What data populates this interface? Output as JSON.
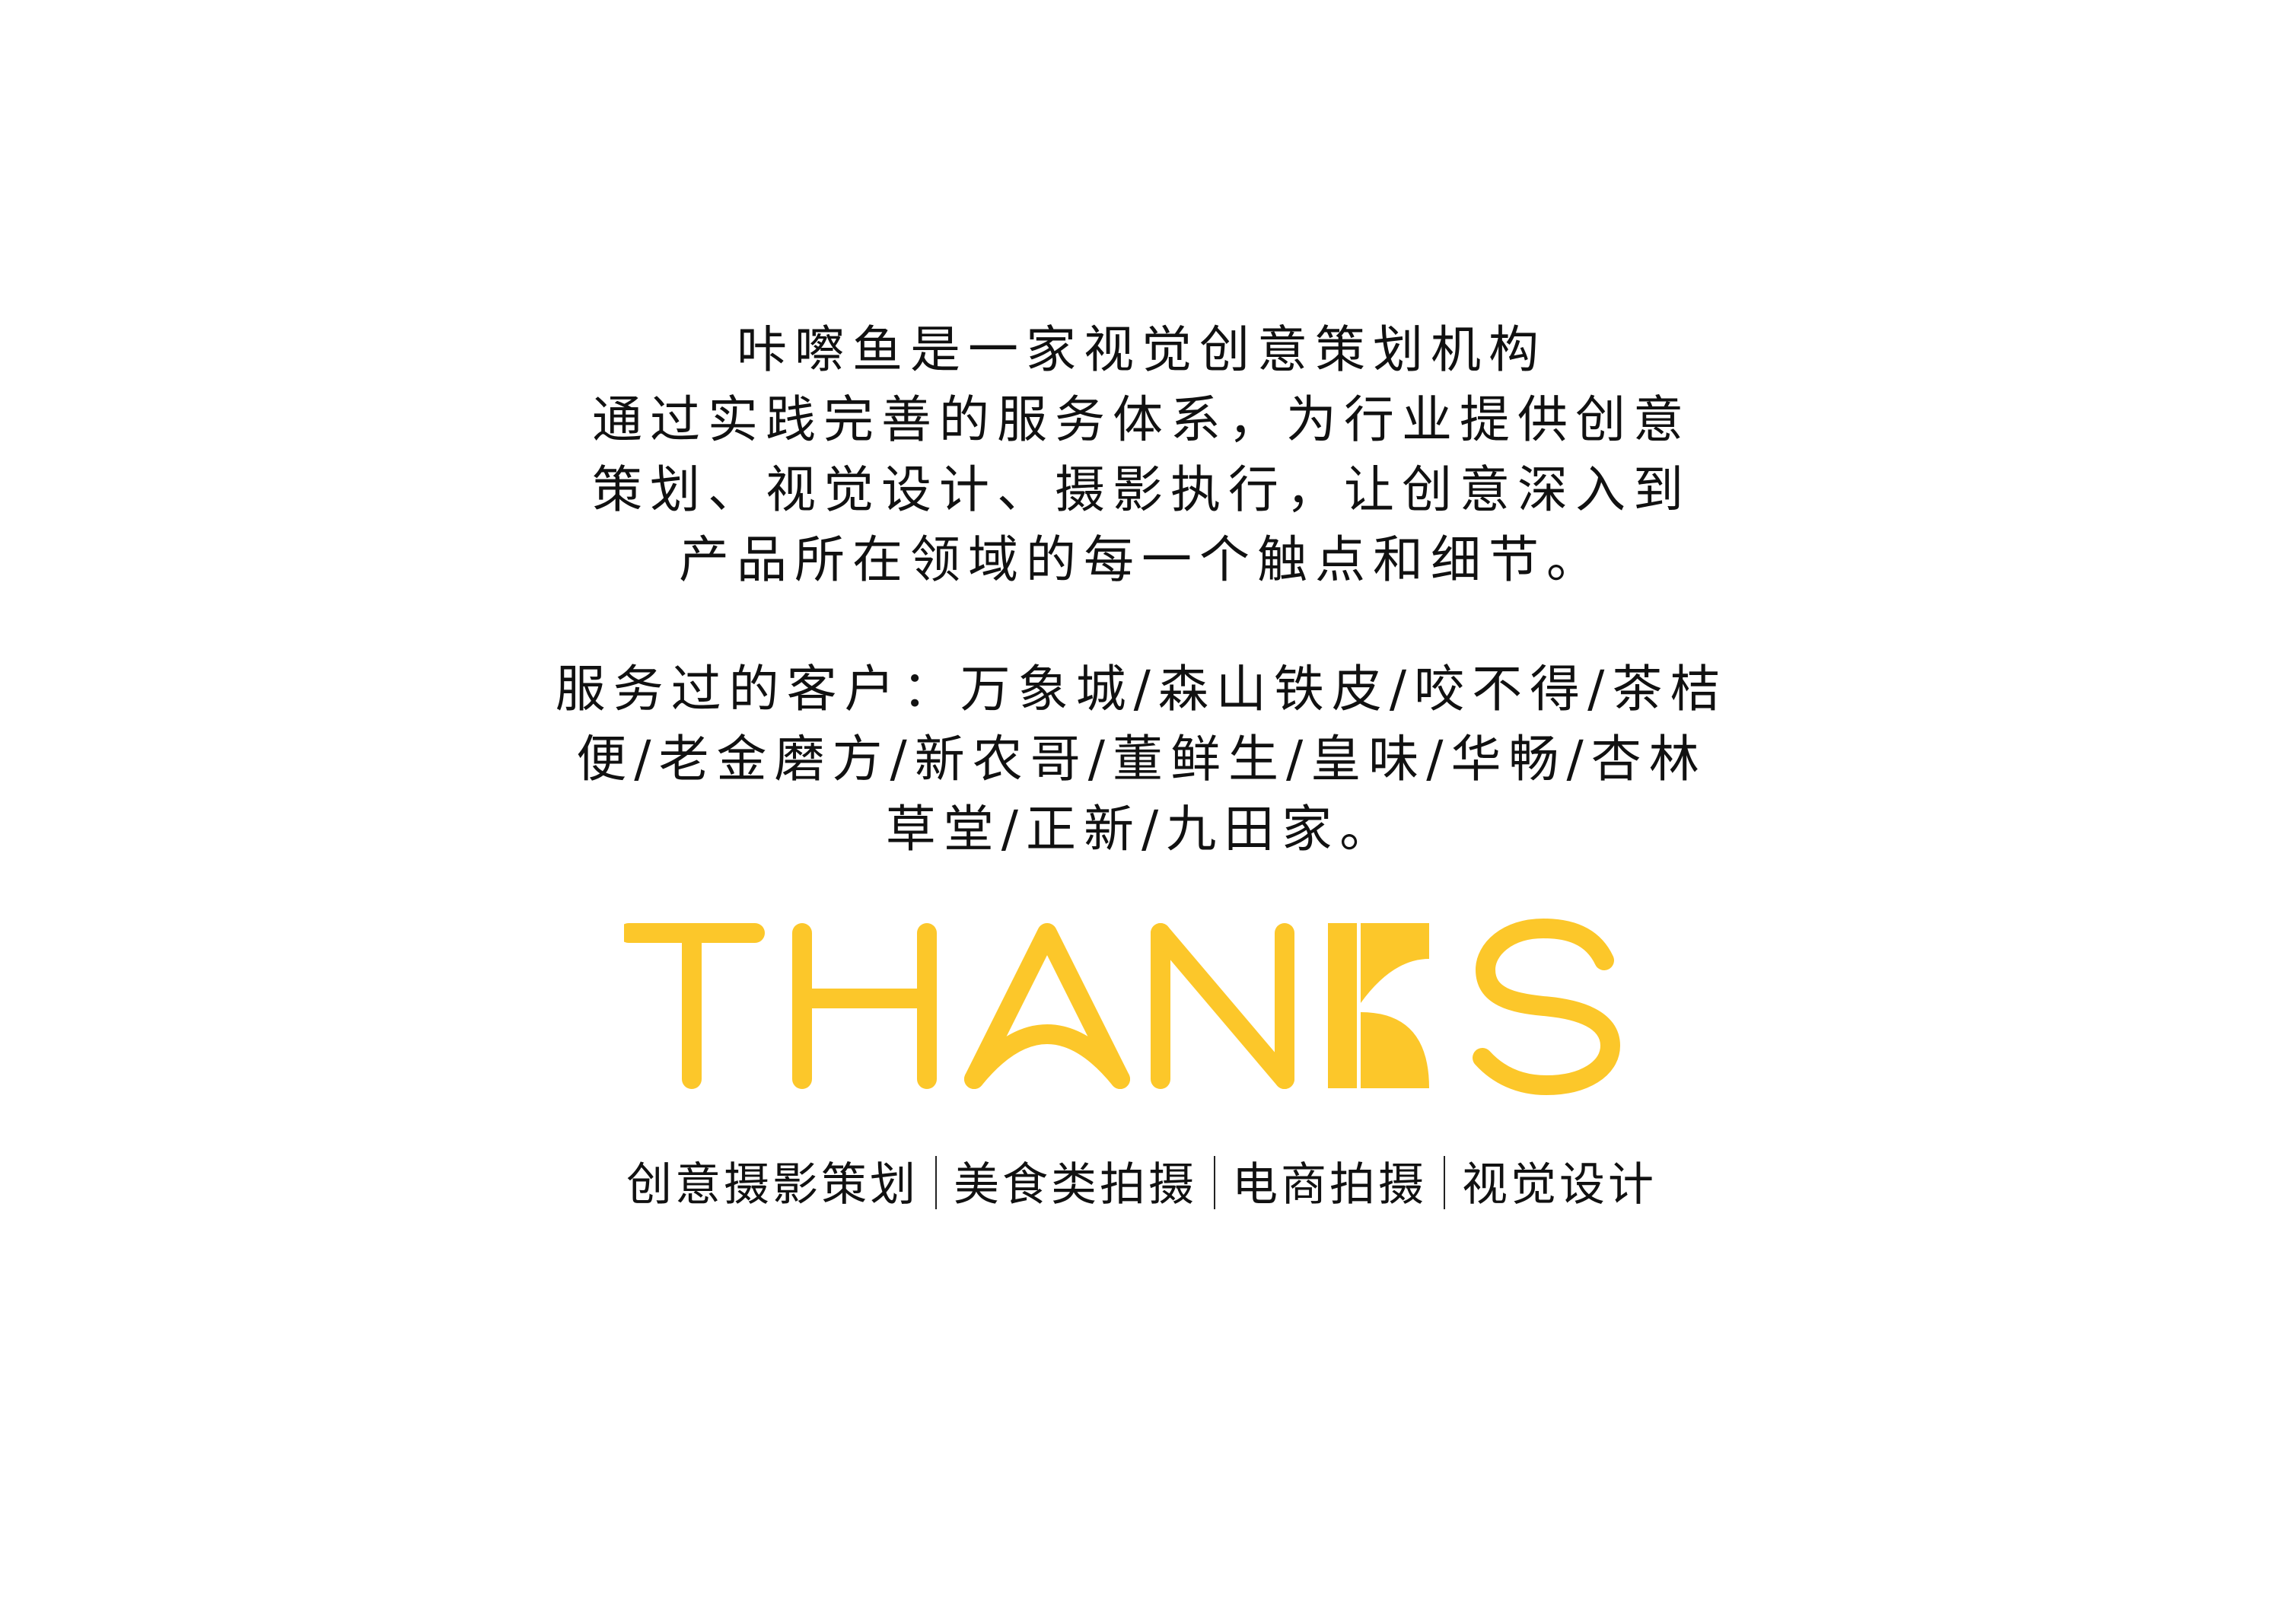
{
  "intro": {
    "lines": [
      "咔嚓鱼是一家视觉创意策划机构",
      "通过实践完善的服务体系，为行业提供创意",
      "策划、视觉设计、摄影执行，让创意深入到",
      "产品所在领域的每一个触点和细节。"
    ]
  },
  "clients": {
    "lines": [
      "服务过的客户：万象城/森山铁皮/咬不得/茶桔",
      "便/老金磨方/新农哥/董鲜生/皇味/华畅/杏林",
      "草堂/正新/九田家。"
    ]
  },
  "logo": {
    "text": "THANKS",
    "color": "#FCC72A"
  },
  "tagline": {
    "items": [
      "创意摄影策划",
      "美食类拍摄",
      "电商拍摄",
      "视觉设计"
    ]
  }
}
